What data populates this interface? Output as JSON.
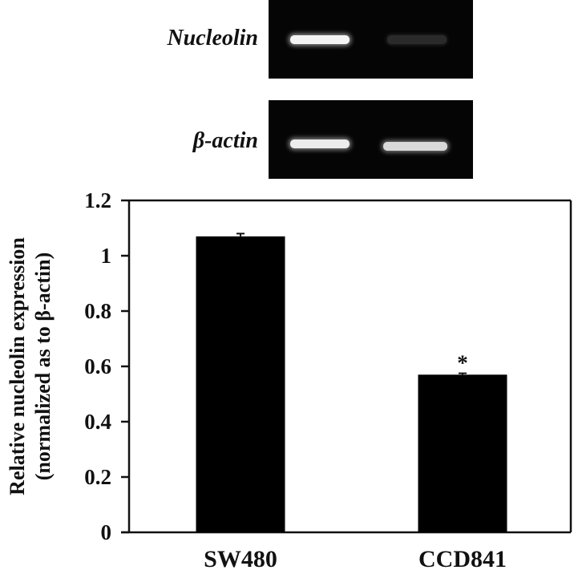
{
  "gel": {
    "rows": [
      {
        "label": "Nucleolin",
        "band_intensity": [
          "strong",
          "faint"
        ]
      },
      {
        "label": "β-actin",
        "band_intensity": [
          "strong",
          "strong"
        ]
      }
    ]
  },
  "chart_data": {
    "type": "bar",
    "title": "",
    "categories": [
      "SW480",
      "CCD841"
    ],
    "values": [
      1.07,
      0.57
    ],
    "errors": [
      0.01,
      0.005
    ],
    "annotations": [
      {
        "category": "CCD841",
        "text": "*"
      }
    ],
    "xlabel": "",
    "ylabel": "Relative nucleolin expression (normalized as to β-actin)",
    "ylabel_line1": "Relative nucleolin expression",
    "ylabel_line2": "(normalized as to β-actin)",
    "ylim": [
      0,
      1.2
    ],
    "yticks": [
      "0",
      "0.2",
      "0.4",
      "0.6",
      "0.8",
      "1",
      "1.2"
    ],
    "grid": false,
    "legend": null,
    "bar_color": "#000000"
  }
}
